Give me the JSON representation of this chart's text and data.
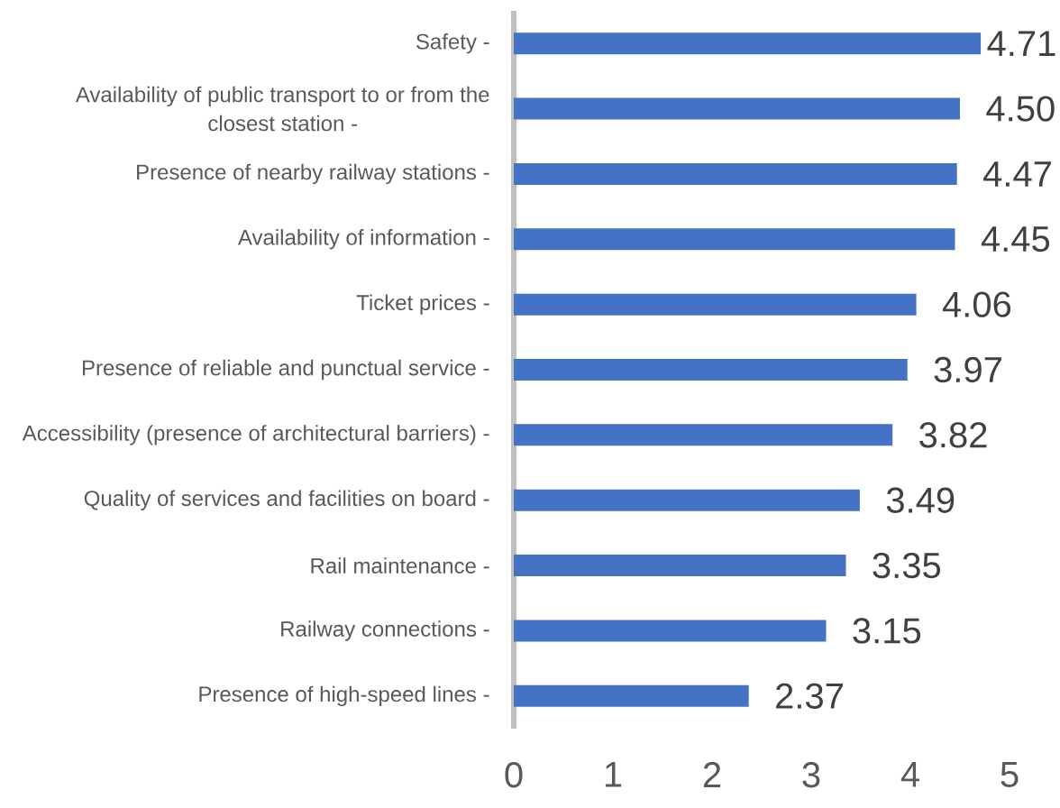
{
  "chart_data": {
    "type": "bar",
    "orientation": "horizontal",
    "categories": [
      "Safety -",
      "Availability of public transport to or from the closest station -",
      "Presence of nearby railway stations -",
      "Availability of information -",
      "Ticket prices -",
      "Presence of reliable and punctual service -",
      "Accessibility (presence of architectural barriers) -",
      "Quality of services and facilities on board -",
      "Rail maintenance -",
      "Railway connections -",
      "Presence of high-speed lines -"
    ],
    "values": [
      4.71,
      4.5,
      4.47,
      4.45,
      4.06,
      3.97,
      3.82,
      3.49,
      3.35,
      3.15,
      2.37
    ],
    "value_labels": [
      "4.71",
      "4.50",
      "4.47",
      "4.45",
      "4.06",
      "3.97",
      "3.82",
      "3.49",
      "3.35",
      "3.15",
      "2.37"
    ],
    "color": "#4472c4",
    "xlim": [
      0,
      5
    ],
    "xticks": [
      0,
      1,
      2,
      3,
      4,
      5
    ]
  }
}
